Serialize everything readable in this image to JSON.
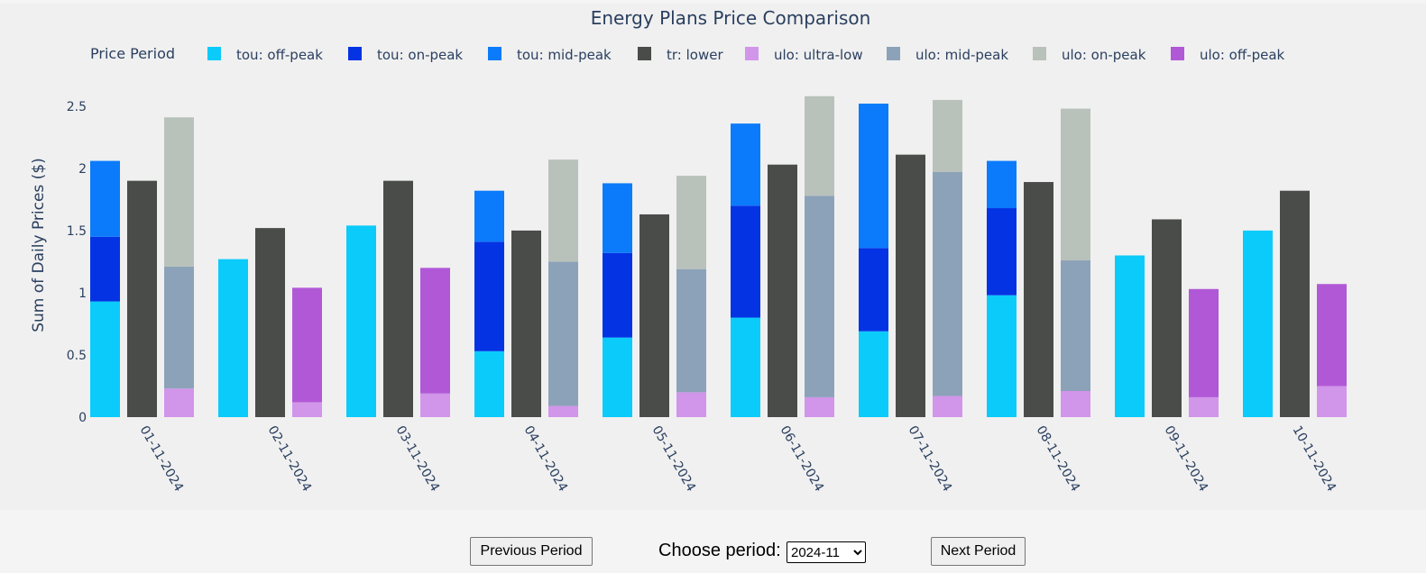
{
  "chart_data": {
    "type": "bar",
    "title": "Energy Plans Price Comparison",
    "xlabel": "",
    "ylabel": "Sum of Daily Prices ($)",
    "ylim": [
      0,
      2.6
    ],
    "yticks": [
      0,
      0.5,
      1,
      1.5,
      2,
      2.5
    ],
    "ytick_labels": [
      "0",
      "0.5",
      "1",
      "1.5",
      "2",
      "2.5"
    ],
    "legend_title": "Price Period",
    "legend_position": "top",
    "grid": false,
    "categories": [
      "01-11-2024",
      "02-11-2024",
      "03-11-2024",
      "04-11-2024",
      "05-11-2024",
      "06-11-2024",
      "07-11-2024",
      "08-11-2024",
      "09-11-2024",
      "10-11-2024"
    ],
    "plans": [
      "tou",
      "tr",
      "ulo"
    ],
    "series": [
      {
        "name": "tou: off-peak",
        "plan": "tou",
        "color": "#0bcbfb",
        "values": [
          0.93,
          1.27,
          1.54,
          0.53,
          0.64,
          0.8,
          0.69,
          0.98,
          1.3,
          1.5
        ]
      },
      {
        "name": "tou: on-peak",
        "plan": "tou",
        "color": "#0433e4",
        "values": [
          0.52,
          0,
          0,
          0.88,
          0.68,
          0.9,
          0.67,
          0.7,
          0,
          0
        ]
      },
      {
        "name": "tou: mid-peak",
        "plan": "tou",
        "color": "#0b7bfb",
        "values": [
          0.61,
          0,
          0,
          0.41,
          0.56,
          0.66,
          1.16,
          0.38,
          0,
          0
        ]
      },
      {
        "name": "tr: lower",
        "plan": "tr",
        "color": "#4a4c49",
        "values": [
          1.9,
          1.52,
          1.9,
          1.5,
          1.63,
          2.03,
          2.11,
          1.89,
          1.59,
          1.82
        ]
      },
      {
        "name": "ulo: ultra-low",
        "plan": "ulo",
        "color": "#d195ea",
        "values": [
          0.23,
          0.12,
          0.19,
          0.09,
          0.2,
          0.16,
          0.17,
          0.21,
          0.16,
          0.25
        ]
      },
      {
        "name": "ulo: mid-peak",
        "plan": "ulo",
        "color": "#8ca2b9",
        "values": [
          0.98,
          0,
          0,
          1.16,
          0.99,
          1.62,
          1.8,
          1.05,
          0,
          0
        ]
      },
      {
        "name": "ulo: on-peak",
        "plan": "ulo",
        "color": "#b9c2ba",
        "values": [
          1.2,
          0,
          0,
          0.82,
          0.75,
          0.8,
          0.58,
          1.22,
          0,
          0
        ]
      },
      {
        "name": "ulo: off-peak",
        "plan": "ulo",
        "color": "#b158d7",
        "values": [
          0,
          0.92,
          1.01,
          0,
          0,
          0,
          0,
          0,
          0.87,
          0.82
        ]
      }
    ]
  },
  "controls": {
    "prev_label": "Previous Period",
    "next_label": "Next Period",
    "period_label": "Choose period:",
    "period_value": "2024-11",
    "period_options": [
      "2024-11"
    ]
  }
}
